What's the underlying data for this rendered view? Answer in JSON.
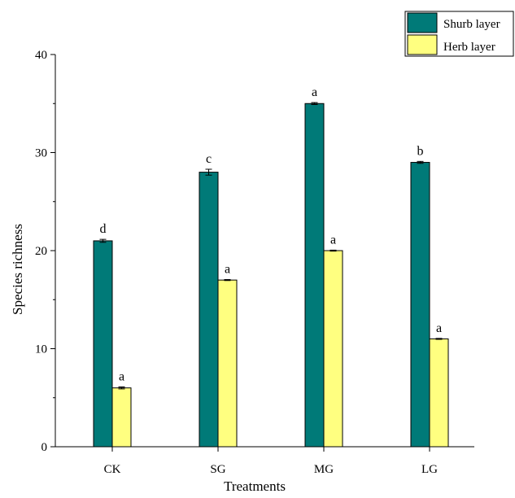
{
  "chart_data": {
    "type": "bar",
    "title": "",
    "xlabel": "Treatments",
    "ylabel": "Species richness",
    "categories": [
      "CK",
      "SG",
      "MG",
      "LG"
    ],
    "ylim": [
      0,
      40
    ],
    "yticks": [
      0,
      10,
      20,
      30,
      40
    ],
    "grid": false,
    "legend_position": "top-right",
    "series": [
      {
        "name": "Shurb layer",
        "color": "#007a78",
        "values": [
          21,
          28,
          35,
          29
        ],
        "errors": [
          0.15,
          0.3,
          0.1,
          0.1
        ],
        "labels": [
          "d",
          "c",
          "a",
          "b"
        ]
      },
      {
        "name": "Herb layer",
        "color": "#ffff80",
        "values": [
          6,
          17,
          20,
          11
        ],
        "errors": [
          0.1,
          0.05,
          0.05,
          0.05
        ],
        "labels": [
          "a",
          "a",
          "a",
          "a"
        ]
      }
    ]
  }
}
